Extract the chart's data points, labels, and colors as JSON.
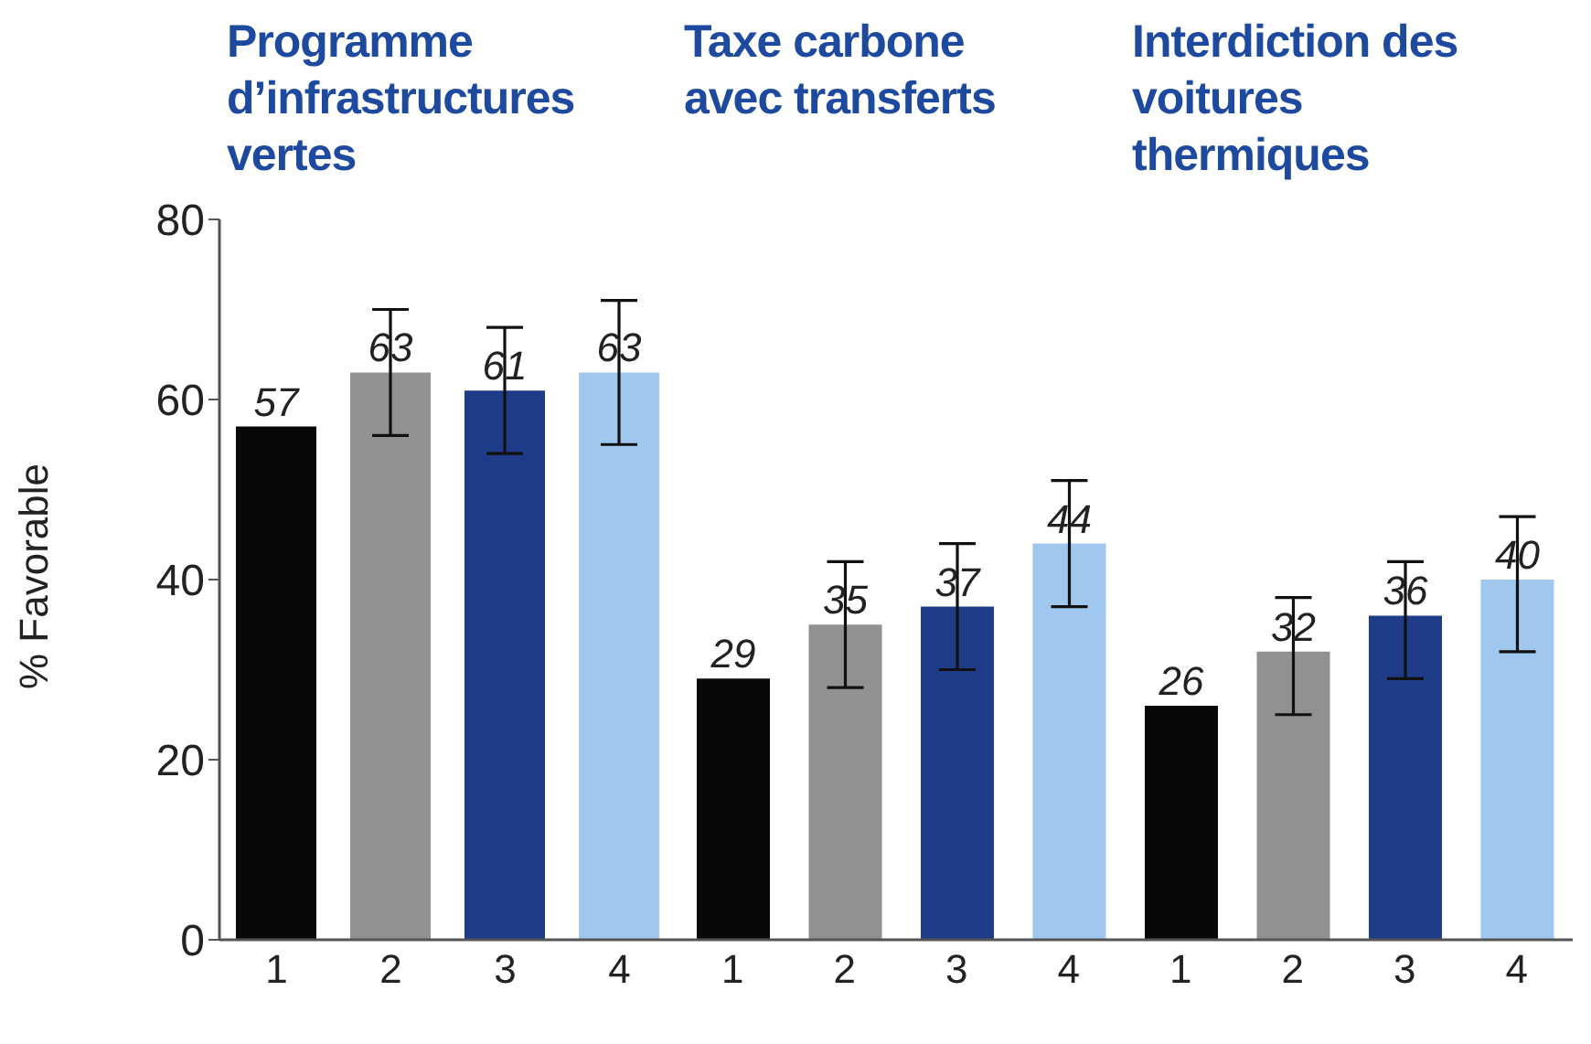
{
  "chart_data": [
    {
      "type": "bar",
      "title": "Programme d’infrastructures vertes",
      "ylabel": "% Favorable",
      "categories": [
        "1",
        "2",
        "3",
        "4"
      ],
      "values": [
        57,
        63,
        61,
        63
      ],
      "colors": [
        "#080808",
        "#919191",
        "#1f3c88",
        "#a0c8ee"
      ],
      "errors": [
        null,
        [
          56,
          70
        ],
        [
          54,
          68
        ],
        [
          55,
          71
        ]
      ],
      "data_labels": true,
      "ylim": [
        0,
        80
      ],
      "yticks": [
        0,
        20,
        40,
        60,
        80
      ],
      "grid": false,
      "legend": false
    },
    {
      "type": "bar",
      "title": "Taxe carbone avec transferts",
      "categories": [
        "1",
        "2",
        "3",
        "4"
      ],
      "values": [
        29,
        35,
        37,
        44
      ],
      "colors": [
        "#080808",
        "#919191",
        "#1f3c88",
        "#a0c8ee"
      ],
      "errors": [
        null,
        [
          28,
          42
        ],
        [
          30,
          44
        ],
        [
          37,
          51
        ]
      ],
      "data_labels": true,
      "ylim": [
        0,
        80
      ],
      "tick_labels": "x",
      "grid": false,
      "legend": false
    },
    {
      "type": "bar",
      "title": "Interdiction des voitures thermiques",
      "categories": [
        "1",
        "2",
        "3",
        "4"
      ],
      "values": [
        26,
        32,
        36,
        40
      ],
      "colors": [
        "#080808",
        "#919191",
        "#1f3c88",
        "#a0c8ee"
      ],
      "errors": [
        null,
        [
          25,
          38
        ],
        [
          29,
          42
        ],
        [
          32,
          47
        ]
      ],
      "data_labels": true,
      "ylim": [
        0,
        80
      ],
      "tick_labels": "x",
      "grid": false,
      "legend": false
    }
  ]
}
